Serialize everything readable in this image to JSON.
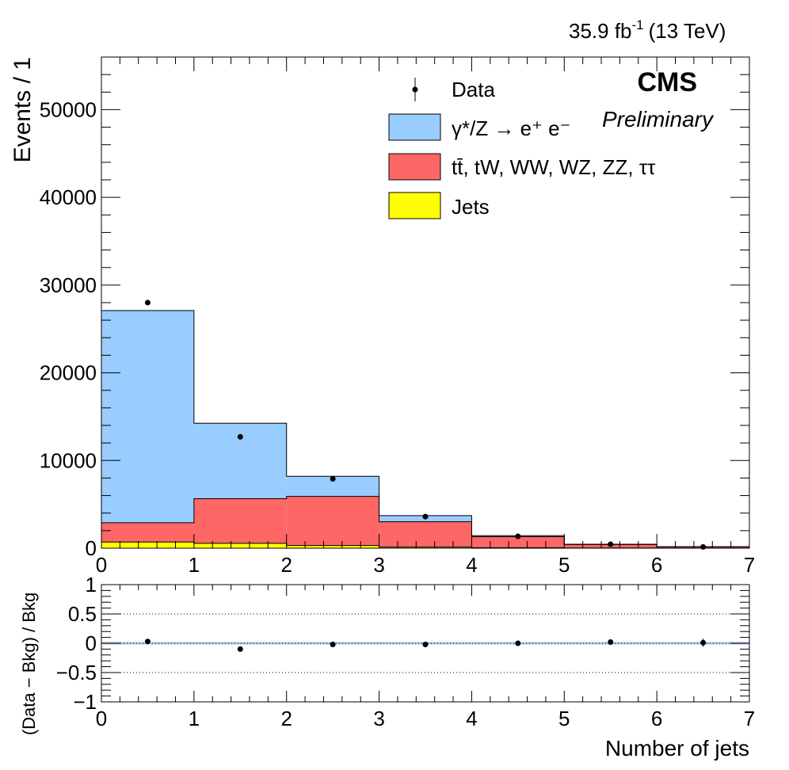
{
  "header": {
    "lumi_value": "35.9 fb",
    "lumi_exponent": "-1",
    "energy": "(13 TeV)",
    "cms_label": "CMS",
    "preliminary_label": "Preliminary"
  },
  "legend": {
    "data": "Data",
    "dy": "γ*/Z → e⁺ e⁻",
    "top": "tt̄, tW, WW, WZ, ZZ, ττ",
    "jets": "Jets"
  },
  "colors": {
    "dy": "#99ccff",
    "top": "#ff6666",
    "jets": "#ffff00",
    "band": "#adc4dc"
  },
  "chart_data": [
    {
      "type": "bar",
      "stacked": true,
      "bin_edges": [
        0,
        1,
        2,
        3,
        4,
        5,
        6,
        7
      ],
      "x": [
        0.5,
        1.5,
        2.5,
        3.5,
        4.5,
        5.5,
        6.5
      ],
      "xlabel": "Number of jets",
      "ylabel": "Events / 1",
      "xlim": [
        0,
        7
      ],
      "ylim": [
        0,
        56000
      ],
      "yticks": [
        0,
        10000,
        20000,
        30000,
        40000,
        50000
      ],
      "xticks": [
        0,
        1,
        2,
        3,
        4,
        5,
        6,
        7
      ],
      "series": [
        {
          "name": "Jets",
          "values": [
            700,
            550,
            300,
            120,
            60,
            20,
            10
          ]
        },
        {
          "name": "tt̄, tW, WW, WZ, ZZ, ττ",
          "values": [
            2200,
            5100,
            5600,
            2900,
            1250,
            400,
            150
          ]
        },
        {
          "name": "γ*/Z → e⁺ e⁻",
          "values": [
            24200,
            8600,
            2300,
            700,
            120,
            30,
            10
          ]
        }
      ],
      "data": {
        "name": "Data",
        "values": [
          28000,
          12700,
          7900,
          3600,
          1350,
          450,
          150
        ]
      },
      "legend_position": "top-right"
    },
    {
      "type": "scatter",
      "x": [
        0.5,
        1.5,
        2.5,
        3.5,
        4.5,
        5.5,
        6.5
      ],
      "values": [
        0.03,
        -0.1,
        -0.02,
        -0.02,
        0.0,
        0.02,
        0.01
      ],
      "errors": [
        0.01,
        0.01,
        0.01,
        0.01,
        0.02,
        0.03,
        0.07
      ],
      "xlabel": "Number of jets",
      "ylabel": "(Data − Bkg) / Bkg",
      "xlim": [
        0,
        7
      ],
      "ylim": [
        -1,
        1
      ],
      "yticks": [
        -1,
        -0.5,
        0,
        0.5,
        1
      ],
      "ytick_labels": [
        "−1",
        "−0.5",
        "0",
        "0.5",
        "1"
      ],
      "xticks": [
        0,
        1,
        2,
        3,
        4,
        5,
        6,
        7
      ],
      "gridlines": [
        0.5,
        0,
        -0.5
      ]
    }
  ]
}
